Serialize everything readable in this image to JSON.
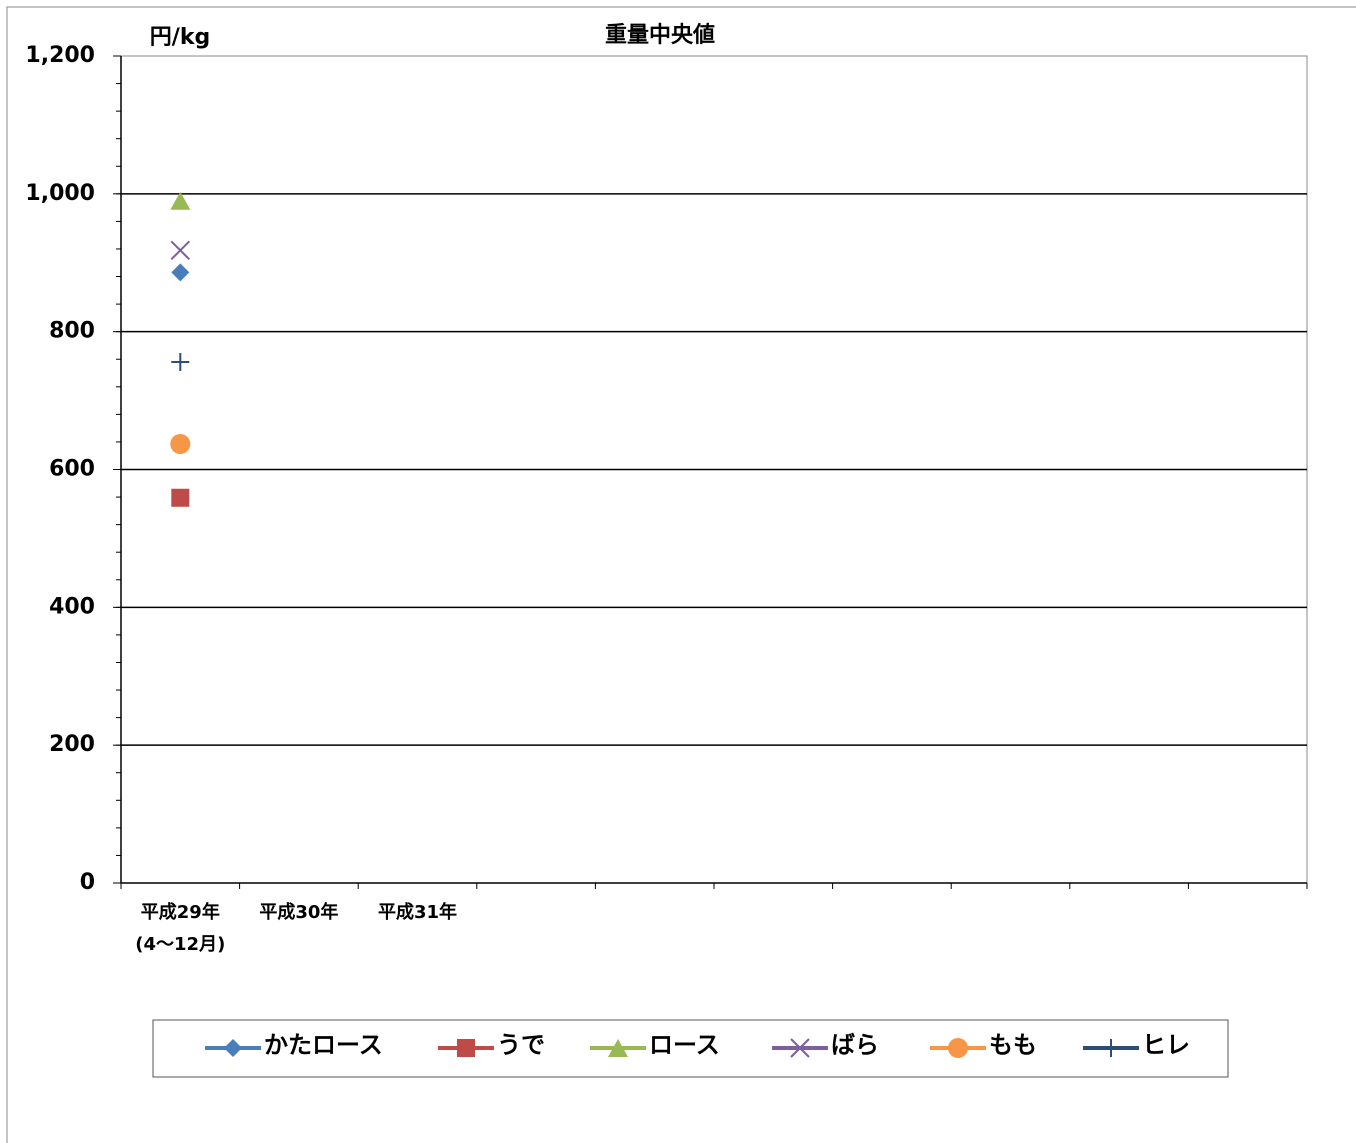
{
  "chart_data": {
    "type": "line",
    "title": "重量中央値",
    "y_unit": "円/kg",
    "categories": [
      "平成29年\n(4～12月)",
      "平成30年",
      "平成31年",
      null,
      null,
      null,
      null,
      null,
      null,
      null
    ],
    "series": [
      {
        "name": "かたロース",
        "color": "#4a7ebb",
        "marker": "diamond",
        "values": [
          886,
          null,
          null,
          null,
          null,
          null,
          null,
          null,
          null,
          null
        ]
      },
      {
        "name": "うで",
        "color": "#be4b48",
        "marker": "square",
        "values": [
          559,
          null,
          null,
          null,
          null,
          null,
          null,
          null,
          null,
          null
        ]
      },
      {
        "name": "ロース",
        "color": "#98b954",
        "marker": "triangle",
        "values": [
          990,
          null,
          null,
          null,
          null,
          null,
          null,
          null,
          null,
          null
        ]
      },
      {
        "name": "ばら",
        "color": "#7d5fa0",
        "marker": "x",
        "values": [
          918,
          null,
          null,
          null,
          null,
          null,
          null,
          null,
          null,
          null
        ]
      },
      {
        "name": "もも",
        "color": "#f79646",
        "marker": "circle",
        "values": [
          637,
          null,
          null,
          null,
          null,
          null,
          null,
          null,
          null,
          null
        ]
      },
      {
        "name": "ヒレ",
        "color": "#2c4d75",
        "marker": "plus",
        "values": [
          756,
          null,
          null,
          null,
          null,
          null,
          null,
          null,
          null,
          null
        ]
      }
    ],
    "ylim": [
      0,
      1200
    ],
    "yticks": [
      0,
      200,
      400,
      600,
      800,
      {
        "value": 1000,
        "label": "1,000"
      },
      {
        "value": 1200,
        "label": "1,200"
      }
    ],
    "yminor_step": 40,
    "grid": true,
    "legend": "bottom"
  }
}
